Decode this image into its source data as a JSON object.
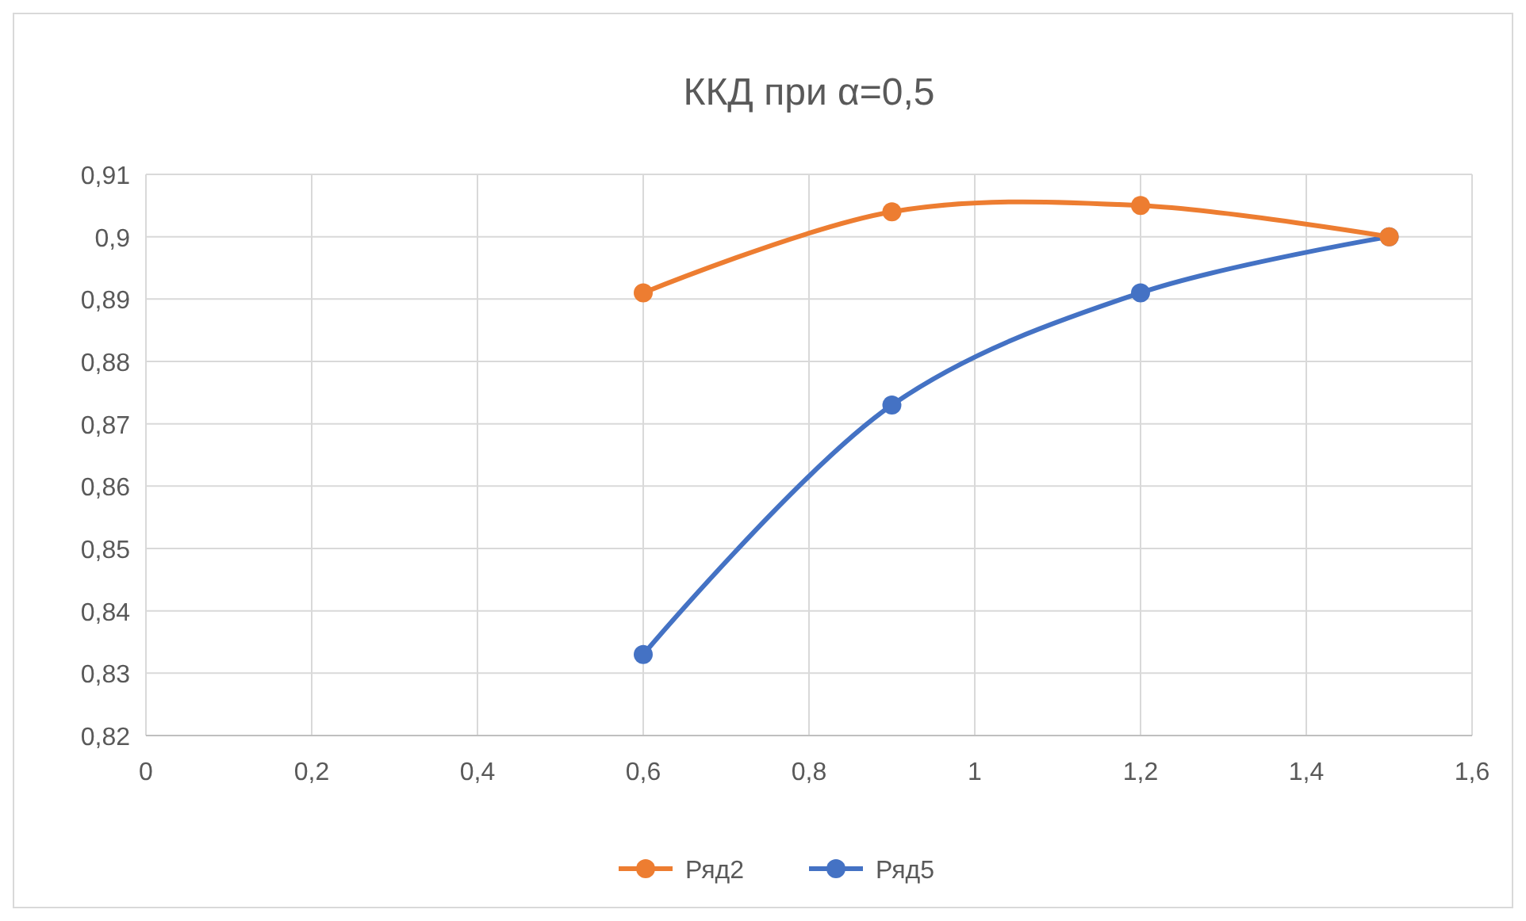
{
  "chart_data": {
    "type": "line",
    "title": "ККД при α=0,5",
    "x": [
      0.6,
      0.9,
      1.2,
      1.5
    ],
    "series": [
      {
        "name": "Ряд2",
        "color": "#ed7d31",
        "values": [
          0.891,
          0.904,
          0.905,
          0.9
        ]
      },
      {
        "name": "Ряд5",
        "color": "#4472c4",
        "values": [
          0.833,
          0.873,
          0.891,
          0.9
        ]
      }
    ],
    "xlim": [
      0,
      1.6
    ],
    "xticks": [
      0,
      {
        "value": 0.2,
        "label": "0,2"
      },
      {
        "value": 0.4,
        "label": "0,4"
      },
      {
        "value": 0.6,
        "label": "0,6"
      },
      {
        "value": 0.8,
        "label": "0,8"
      },
      1,
      {
        "value": 1.2,
        "label": "1,2"
      },
      {
        "value": 1.4,
        "label": "1,4"
      },
      {
        "value": 1.6,
        "label": "1,6"
      }
    ],
    "ylim": [
      0.82,
      0.91
    ],
    "yticks": [
      {
        "value": 0.82,
        "label": "0,82"
      },
      {
        "value": 0.83,
        "label": "0,83"
      },
      {
        "value": 0.84,
        "label": "0,84"
      },
      {
        "value": 0.85,
        "label": "0,85"
      },
      {
        "value": 0.86,
        "label": "0,86"
      },
      {
        "value": 0.87,
        "label": "0,87"
      },
      {
        "value": 0.88,
        "label": "0,88"
      },
      {
        "value": 0.89,
        "label": "0,89"
      },
      {
        "value": 0.9,
        "label": "0,9"
      },
      {
        "value": 0.91,
        "label": "0,91"
      }
    ],
    "grid": true,
    "legend": "bottom",
    "marker": "circle",
    "line_style": "solid"
  }
}
